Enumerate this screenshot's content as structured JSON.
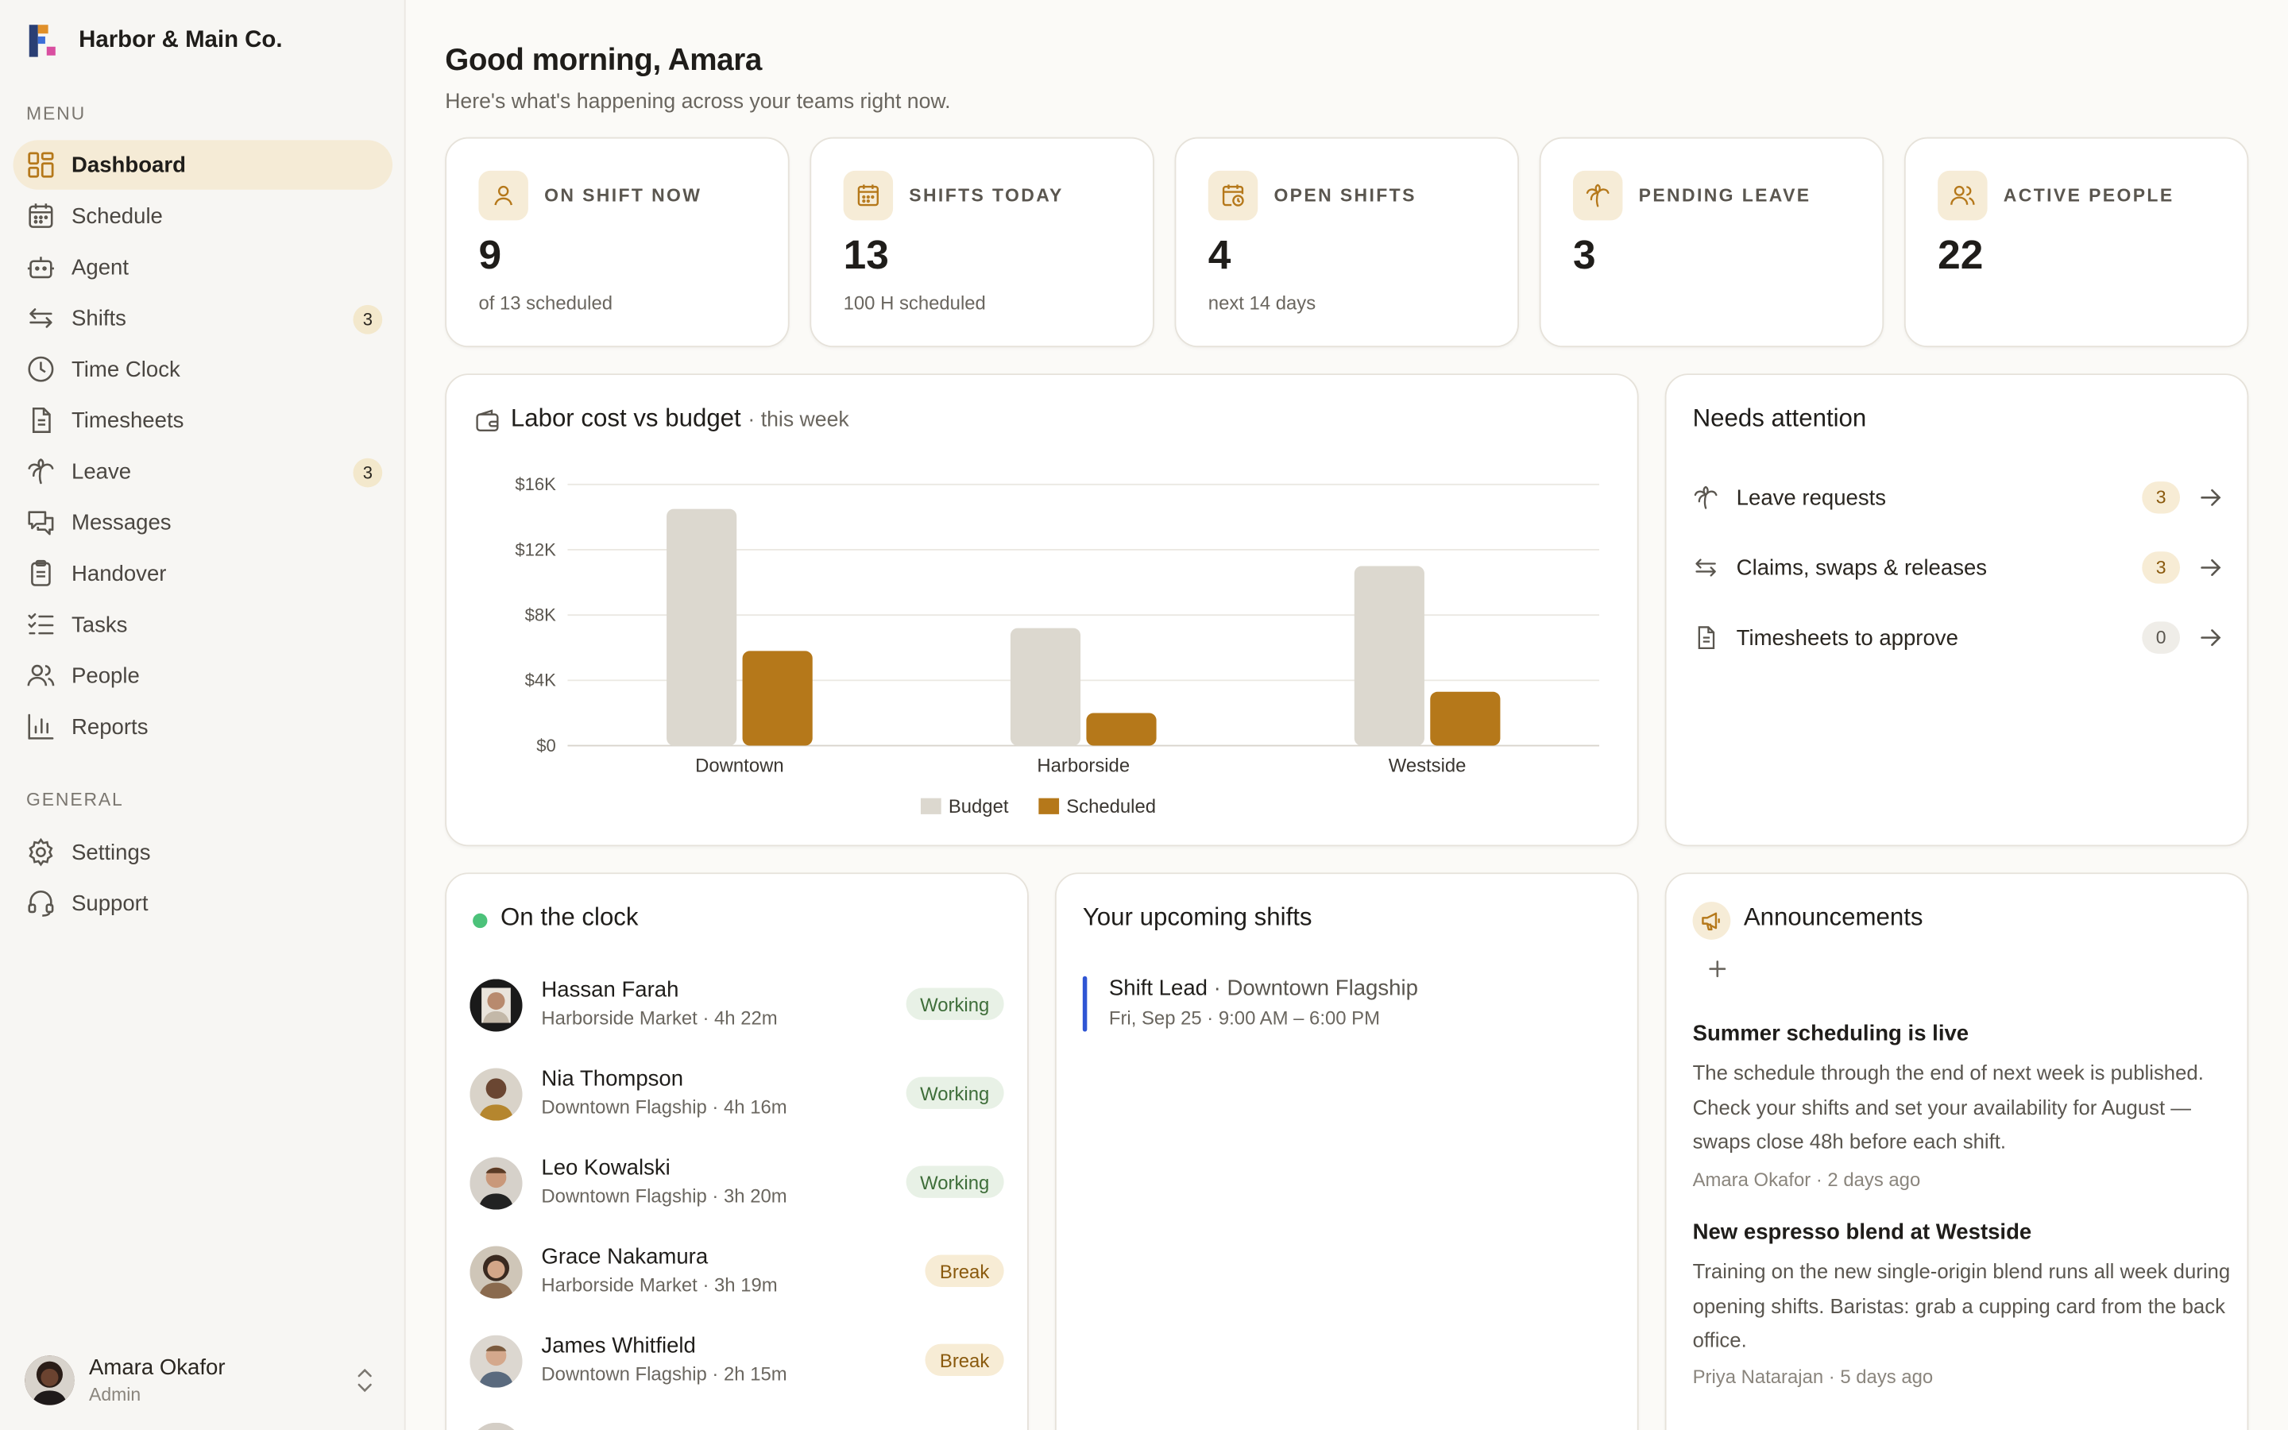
{
  "brand": {
    "name": "Harbor & Main Co."
  },
  "sidebar": {
    "menu_label": "MENU",
    "general_label": "GENERAL",
    "items": [
      {
        "label": "Dashboard",
        "icon": "dashboard-icon",
        "active": true
      },
      {
        "label": "Schedule",
        "icon": "calendar-icon"
      },
      {
        "label": "Agent",
        "icon": "bot-icon"
      },
      {
        "label": "Shifts",
        "icon": "swap-icon",
        "badge": "3"
      },
      {
        "label": "Time Clock",
        "icon": "clock-icon"
      },
      {
        "label": "Timesheets",
        "icon": "document-icon"
      },
      {
        "label": "Leave",
        "icon": "palm-tree-icon",
        "badge": "3"
      },
      {
        "label": "Messages",
        "icon": "messages-icon"
      },
      {
        "label": "Handover",
        "icon": "clipboard-icon"
      },
      {
        "label": "Tasks",
        "icon": "list-icon"
      },
      {
        "label": "People",
        "icon": "people-icon"
      },
      {
        "label": "Reports",
        "icon": "bar-chart-icon"
      }
    ],
    "general_items": [
      {
        "label": "Settings",
        "icon": "gear-icon"
      },
      {
        "label": "Support",
        "icon": "headset-icon"
      }
    ],
    "user": {
      "name": "Amara Okafor",
      "role": "Admin"
    }
  },
  "header": {
    "greeting": "Good morning, Amara",
    "subtitle": "Here's what's happening across your teams right now."
  },
  "stats": [
    {
      "label": "ON SHIFT NOW",
      "value": "9",
      "note": "of 13 scheduled",
      "icon": "person-icon"
    },
    {
      "label": "SHIFTS TODAY",
      "value": "13",
      "note": "100 H scheduled",
      "icon": "calendar-icon"
    },
    {
      "label": "OPEN SHIFTS",
      "value": "4",
      "note": "next 14 days",
      "icon": "calendar-clock-icon"
    },
    {
      "label": "PENDING LEAVE",
      "value": "3",
      "note": "",
      "icon": "palm-tree-icon"
    },
    {
      "label": "ACTIVE PEOPLE",
      "value": "22",
      "note": "",
      "icon": "people-icon"
    }
  ],
  "labor_card": {
    "title": "Labor cost vs budget",
    "suffix": "· this week"
  },
  "chart_data": {
    "type": "bar",
    "categories": [
      "Downtown",
      "Harborside",
      "Westside"
    ],
    "series": [
      {
        "name": "Budget",
        "values": [
          14500,
          7200,
          11000
        ],
        "color": "#dcd8cf"
      },
      {
        "name": "Scheduled",
        "values": [
          5800,
          2000,
          3300
        ],
        "color": "#b5781a"
      }
    ],
    "ylim": [
      0,
      16000
    ],
    "ytick_labels": [
      "$0",
      "$4K",
      "$8K",
      "$12K",
      "$16K"
    ],
    "ytick_values": [
      0,
      4000,
      8000,
      12000,
      16000
    ],
    "grid": true,
    "legend": "bottom"
  },
  "attention": {
    "title": "Needs attention",
    "items": [
      {
        "label": "Leave requests",
        "count": "3",
        "icon": "palm-tree-icon"
      },
      {
        "label": "Claims, swaps & releases",
        "count": "3",
        "icon": "swap-icon"
      },
      {
        "label": "Timesheets to approve",
        "count": "0",
        "icon": "document-icon"
      }
    ]
  },
  "clock": {
    "title": "On the clock",
    "people": [
      {
        "name": "Hassan Farah",
        "meta": "Harborside Market · 4h 22m",
        "status": "Working"
      },
      {
        "name": "Nia Thompson",
        "meta": "Downtown Flagship · 4h 16m",
        "status": "Working"
      },
      {
        "name": "Leo Kowalski",
        "meta": "Downtown Flagship · 3h 20m",
        "status": "Working"
      },
      {
        "name": "Grace Nakamura",
        "meta": "Harborside Market · 3h 19m",
        "status": "Break"
      },
      {
        "name": "James Whitfield",
        "meta": "Downtown Flagship · 2h 15m",
        "status": "Break"
      }
    ]
  },
  "upcoming": {
    "title": "Your upcoming shifts",
    "shift_role": "Shift Lead",
    "shift_location": " · Downtown Flagship",
    "shift_time": "Fri, Sep 25 · 9:00 AM – 6:00 PM"
  },
  "announcements": {
    "title": "Announcements",
    "items": [
      {
        "title": "Summer scheduling is live",
        "body": "The schedule through the end of next week is published. Check your shifts and set your availability for August — swaps close 48h before each shift.",
        "meta": "Amara Okafor · 2 days ago"
      },
      {
        "title": "New espresso blend at Westside",
        "body": "Training on the new single-origin blend runs all week during opening shifts. Baristas: grab a cupping card from the back office.",
        "meta": "Priya Natarajan · 5 days ago"
      }
    ]
  }
}
